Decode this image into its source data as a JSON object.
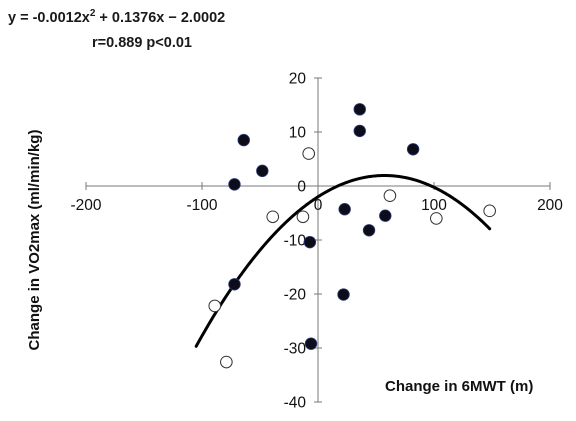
{
  "chart_data": {
    "type": "scatter",
    "equation": "y = -0.0012x² + 0.1376x − 2.0002",
    "equation_parts": {
      "pre": "y = -0.0012x",
      "sup": "2",
      "post": " + 0.1376x − 2.0002"
    },
    "stats": "r=0.889 p<0.01",
    "xlabel": "Change in 6MWT (m)",
    "ylabel": "Change in VO2max (ml/min/kg)",
    "xlim": [
      -200,
      200
    ],
    "ylim": [
      -40,
      20
    ],
    "x_ticks": [
      -200,
      -100,
      0,
      100,
      200
    ],
    "y_ticks": [
      20,
      10,
      0,
      -10,
      -20,
      -30,
      -40
    ],
    "x_tick_labels": [
      "-200",
      "-100",
      "0",
      "100",
      "200"
    ],
    "y_tick_labels": [
      "20",
      "10",
      "0",
      "-10",
      "-20",
      "-30",
      "-40"
    ],
    "fit": {
      "a": -0.0012,
      "b": 0.1376,
      "c": -2.0002,
      "x_range": [
        -105,
        148
      ]
    },
    "series": [
      {
        "marker": "filled",
        "color": "#0d0d1a",
        "points": [
          [
            -64,
            8.5
          ],
          [
            -48,
            2.8
          ],
          [
            -72,
            0.3
          ],
          [
            -72,
            -18.2
          ],
          [
            -7,
            -10.4
          ],
          [
            -6,
            -29.2
          ],
          [
            23,
            -4.3
          ],
          [
            22,
            -20.1
          ],
          [
            36,
            14.2
          ],
          [
            36,
            10.2
          ],
          [
            44,
            -8.2
          ],
          [
            58,
            -5.5
          ],
          [
            82,
            6.8
          ]
        ]
      },
      {
        "marker": "open",
        "color": "#ffffff",
        "points": [
          [
            -8,
            6.0
          ],
          [
            -39,
            -5.7
          ],
          [
            -13,
            -5.7
          ],
          [
            62,
            -1.8
          ],
          [
            102,
            -6.0
          ],
          [
            148,
            -4.6
          ],
          [
            -89,
            -22.2
          ],
          [
            -79,
            -32.6
          ]
        ]
      }
    ]
  }
}
